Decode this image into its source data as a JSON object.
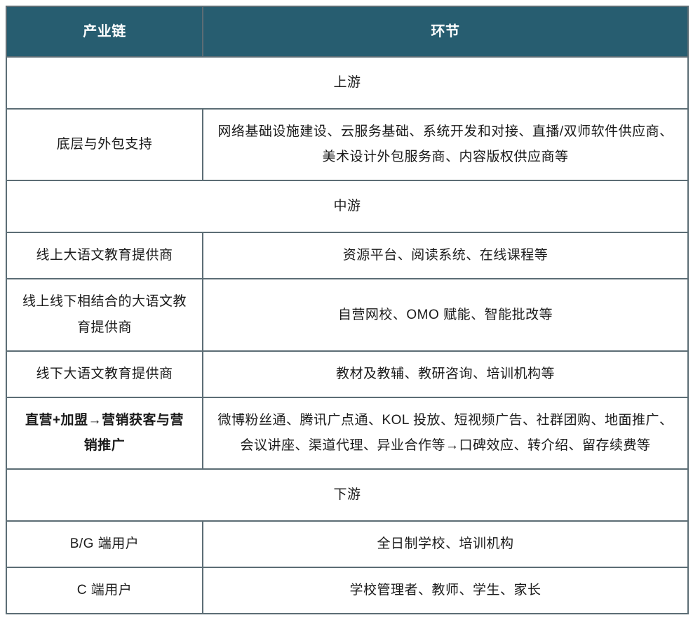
{
  "table": {
    "header": {
      "col1": "产业链",
      "col2": "环节"
    },
    "sections": [
      {
        "title": "上游",
        "rows": [
          {
            "left": "底层与外包支持",
            "right": "网络基础设施建设、云服务基础、系统开发和对接、直播/双师软件供应商、美术设计外包服务商、内容版权供应商等"
          }
        ]
      },
      {
        "title": "中游",
        "rows": [
          {
            "left": "线上大语文教育提供商",
            "right": "资源平台、阅读系统、在线课程等"
          },
          {
            "left": "线上线下相结合的大语文教育提供商",
            "right": "自营网校、OMO 赋能、智能批改等"
          },
          {
            "left": "线下大语文教育提供商",
            "right": "教材及教辅、教研咨询、培训机构等"
          },
          {
            "left": "直营+加盟→营销获客与营销推广",
            "right": "微博粉丝通、腾讯广点通、KOL 投放、短视频广告、社群团购、地面推广、会议讲座、渠道代理、异业合作等→口碑效应、转介绍、留存续费等"
          }
        ]
      },
      {
        "title": "下游",
        "rows": [
          {
            "left": "B/G 端用户",
            "right": "全日制学校、培训机构"
          },
          {
            "left": "C 端用户",
            "right": "学校管理者、教师、学生、家长"
          }
        ]
      }
    ],
    "styling": {
      "header_bg": "#275d70",
      "header_text_color": "#ffffff",
      "border_color": "#5c6d75",
      "body_bg": "#ffffff",
      "text_color": "#1a1a1a",
      "font_family": "Microsoft YaHei",
      "header_fontsize": 20,
      "body_fontsize": 19,
      "col1_width": 280,
      "col2_width": 692,
      "border_width": 2
    }
  }
}
